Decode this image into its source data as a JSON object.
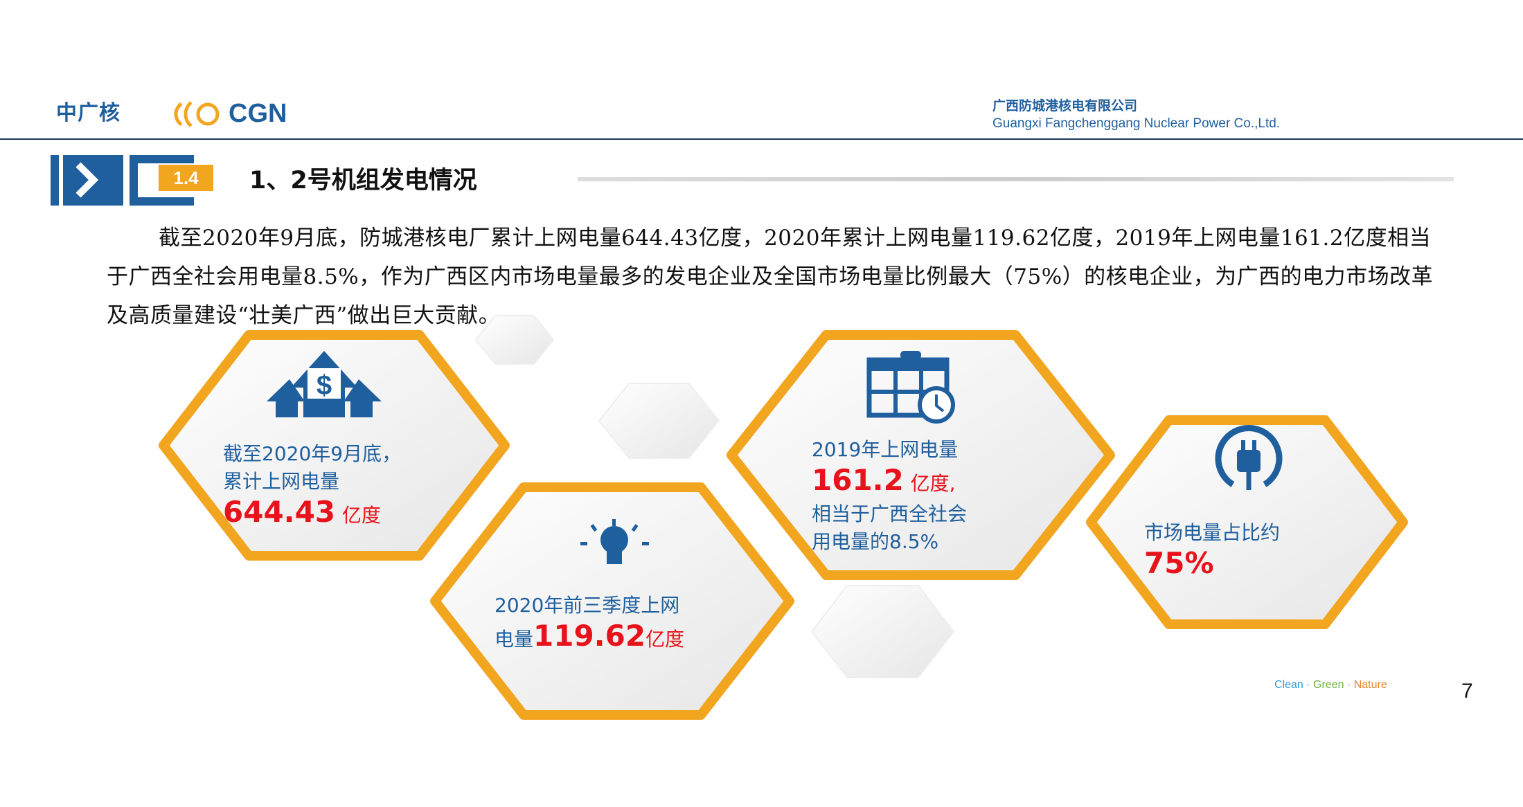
{
  "header": {
    "logo_cn": "中广核",
    "logo_en": "CGN",
    "company_cn": "广西防城港核电有限公司",
    "company_en": "Guangxi Fangchenggang Nuclear Power Co.,Ltd."
  },
  "section": {
    "badge": "1.4",
    "title": "1、2号机组发电情况"
  },
  "paragraph": "截至2020年9月底，防城港核电厂累计上网电量644.43亿度，2020年累计上网电量119.62亿度，2019年上网电量161.2亿度相当于广西全社会用电量8.5%，作为广西区内市场电量最多的发电企业及全国市场电量比例最大（75%）的核电企业，为广西的电力市场改革及高质量建设“壮美广西”做出巨大贡献。",
  "cards": [
    {
      "icon": "dollar-arrows-icon",
      "line1": "截至2020年9月底，",
      "line2": "累计上网电量",
      "value": "644.43",
      "unit": "亿度"
    },
    {
      "icon": "lightbulb-icon",
      "line1": "2020年前三季度上网",
      "prefix": "电量",
      "value": "119.62",
      "unit": "亿度"
    },
    {
      "icon": "calendar-clock-icon",
      "line1": "2019年上网电量",
      "value": "161.2",
      "unit": "亿度,",
      "line3": "相当于广西全社会",
      "line4": "用电量的8.5%"
    },
    {
      "icon": "power-plug-icon",
      "line1": "市场电量占比约",
      "value": "75%"
    }
  ],
  "footer": {
    "clean": "Clean",
    "green": "Green",
    "nature": "Nature",
    "sep": " · ",
    "page": "7"
  },
  "colors": {
    "brand_blue": "#1f5f9e",
    "orange": "#f2a51f",
    "red": "#e8121b"
  }
}
